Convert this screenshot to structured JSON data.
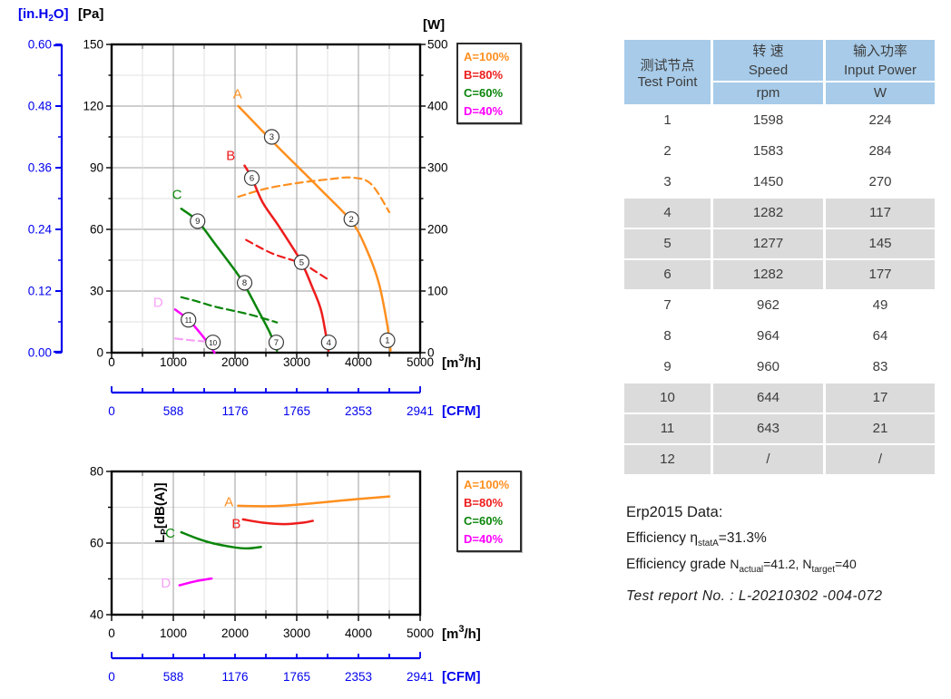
{
  "colors": {
    "blue_axis": "#0000ee",
    "grid_major": "#9c9c9c",
    "grid_minor": "#e0e0e0",
    "frame": "#000000",
    "curve_a": "#ff8f1f",
    "curve_b": "#ee1c1c",
    "curve_c": "#0a850a",
    "curve_d": "#ff00ff",
    "curve_d_light": "#f7a1f7",
    "table_header_bg": "#a7cbe9",
    "table_shade_bg": "#dbdbdb",
    "table_text": "#3d3d3d"
  },
  "legend": {
    "items": [
      {
        "label": "A=100%",
        "color": "#ff8f1f"
      },
      {
        "label": "B=80%",
        "color": "#ee1c1c"
      },
      {
        "label": "C=60%",
        "color": "#0a850a"
      },
      {
        "label": "D=40%",
        "color": "#ff00ff"
      }
    ]
  },
  "chart_data": [
    {
      "type": "line",
      "name": "pressure-and-power-vs-airflow",
      "x_axis": {
        "min": 0,
        "max": 5000,
        "major": 1000,
        "minor": 500,
        "ticks": [
          "0",
          "1000",
          "2000",
          "3000",
          "4000",
          "5000"
        ],
        "unit_parts": [
          {
            "t": "[m"
          },
          {
            "t": "3",
            "dy": -7,
            "s": 11
          },
          {
            "t": "/h]",
            "dy": 7
          }
        ]
      },
      "y_axis_pa": {
        "min": 0,
        "max": 150,
        "major": 30,
        "minor": 15,
        "ticks": [
          "0",
          "30",
          "60",
          "90",
          "120",
          "150"
        ],
        "unit": "[Pa]"
      },
      "y_axis_w": {
        "min": 0,
        "max": 500,
        "ticks": [
          "0",
          "100",
          "200",
          "300",
          "400",
          "500"
        ],
        "unit": "[W]"
      },
      "y_axis_inh2o": {
        "ticks": [
          "0.00",
          "0.12",
          "0.24",
          "0.36",
          "0.48",
          "0.60"
        ],
        "unit_parts": [
          {
            "t": "[in.H"
          },
          {
            "t": "2",
            "dy": 3,
            "s": 10
          },
          {
            "t": "O]",
            "dy": -3
          }
        ]
      },
      "x_axis_cfm": {
        "ticks": [
          "0",
          "588",
          "1176",
          "1765",
          "2353",
          "2941"
        ],
        "unit": "[CFM]"
      },
      "series": [
        {
          "name": "A-pressure",
          "color": "#ff8f1f",
          "dash": false,
          "axis": "pa",
          "points": [
            [
              2053,
              120
            ],
            [
              2600,
              103
            ],
            [
              3000,
              91
            ],
            [
              3400,
              79
            ],
            [
              3885,
              64
            ],
            [
              4120,
              51
            ],
            [
              4330,
              34
            ],
            [
              4470,
              13
            ],
            [
              4520,
              1
            ]
          ]
        },
        {
          "name": "A-power",
          "color": "#ff8f1f",
          "dash": true,
          "axis": "w",
          "points": [
            [
              2053,
              253
            ],
            [
              2500,
              266
            ],
            [
              3000,
              275
            ],
            [
              3500,
              281
            ],
            [
              3880,
              284
            ],
            [
              4200,
              274
            ],
            [
              4500,
              228
            ]
          ]
        },
        {
          "name": "B-pressure",
          "color": "#ee1c1c",
          "dash": false,
          "axis": "pa",
          "points": [
            [
              2155,
              91
            ],
            [
              2272,
              85
            ],
            [
              2450,
              73
            ],
            [
              2700,
              62
            ],
            [
              3000,
              48
            ],
            [
              3079,
              44
            ],
            [
              3250,
              32
            ],
            [
              3400,
              20
            ],
            [
              3515,
              1
            ]
          ]
        },
        {
          "name": "B-power",
          "color": "#ee1c1c",
          "dash": true,
          "axis": "w",
          "points": [
            [
              2180,
              183
            ],
            [
              2600,
              161
            ],
            [
              3080,
              145
            ],
            [
              3300,
              132
            ],
            [
              3520,
              118
            ]
          ]
        },
        {
          "name": "C-pressure",
          "color": "#0a850a",
          "dash": false,
          "axis": "pa",
          "points": [
            [
              1129,
              70
            ],
            [
              1393,
              64
            ],
            [
              1700,
              52
            ],
            [
              2000,
              40
            ],
            [
              2155,
              33
            ],
            [
              2350,
              22
            ],
            [
              2560,
              10
            ],
            [
              2680,
              1
            ]
          ]
        },
        {
          "name": "C-power",
          "color": "#0a850a",
          "dash": true,
          "axis": "w",
          "points": [
            [
              1129,
              90
            ],
            [
              1393,
              83
            ],
            [
              1700,
              74
            ],
            [
              2155,
              64
            ],
            [
              2450,
              56
            ],
            [
              2680,
              49
            ]
          ]
        },
        {
          "name": "D-pressure",
          "color": "#ff00ff",
          "dash": false,
          "axis": "pa",
          "points": [
            [
              1030,
              21
            ],
            [
              1246,
              16
            ],
            [
              1450,
              9
            ],
            [
              1600,
              3
            ],
            [
              1668,
              0
            ]
          ]
        },
        {
          "name": "D-power",
          "color": "#f7a1f7",
          "dash": true,
          "axis": "w",
          "points": [
            [
              1030,
              23
            ],
            [
              1300,
              20
            ],
            [
              1560,
              18
            ]
          ]
        }
      ],
      "curve_labels": [
        {
          "text": "A",
          "x": 2040,
          "y": 126,
          "color": "#ff8f1f"
        },
        {
          "text": "B",
          "x": 1930,
          "y": 96,
          "color": "#ee1c1c"
        },
        {
          "text": "C",
          "x": 1060,
          "y": 77,
          "color": "#0a850a"
        },
        {
          "text": "D",
          "x": 755,
          "y": 24.5,
          "color": "#f7a1f7"
        }
      ],
      "point_markers": [
        {
          "label": "1",
          "x": 4470,
          "y": 6
        },
        {
          "label": "2",
          "x": 3885,
          "y": 65
        },
        {
          "label": "3",
          "x": 2595,
          "y": 105
        },
        {
          "label": "4",
          "x": 3519,
          "y": 5
        },
        {
          "label": "5",
          "x": 3079,
          "y": 44
        },
        {
          "label": "6",
          "x": 2272,
          "y": 85
        },
        {
          "label": "7",
          "x": 2668,
          "y": 5
        },
        {
          "label": "8",
          "x": 2155,
          "y": 34
        },
        {
          "label": "9",
          "x": 1393,
          "y": 64
        },
        {
          "label": "10",
          "x": 1642,
          "y": 5
        },
        {
          "label": "11",
          "x": 1246,
          "y": 16
        }
      ]
    },
    {
      "type": "line",
      "name": "noise-vs-airflow",
      "x_axis": {
        "min": 0,
        "max": 5000,
        "major": 1000,
        "minor": 500,
        "ticks": [
          "0",
          "1000",
          "2000",
          "3000",
          "4000",
          "5000"
        ],
        "unit_parts": [
          {
            "t": "[m"
          },
          {
            "t": "3",
            "dy": -7,
            "s": 11
          },
          {
            "t": "/h]",
            "dy": 7
          }
        ]
      },
      "y_axis": {
        "min": 40,
        "max": 80,
        "ticks": [
          "40",
          "60",
          "80"
        ],
        "label_parts": [
          {
            "t": "L"
          },
          {
            "t": "P",
            "dy": 3,
            "s": 10
          },
          {
            "t": "[dB(A)]",
            "dy": -3
          }
        ]
      },
      "x_axis_cfm": {
        "ticks": [
          "0",
          "588",
          "1176",
          "1765",
          "2353",
          "2941"
        ],
        "unit": "[CFM]"
      },
      "series": [
        {
          "name": "A-noise",
          "color": "#ff8f1f",
          "points": [
            [
              2050,
              70.4
            ],
            [
              2600,
              70.3
            ],
            [
              3000,
              70.7
            ],
            [
              3500,
              71.5
            ],
            [
              4000,
              72.3
            ],
            [
              4500,
              73.0
            ]
          ]
        },
        {
          "name": "B-noise",
          "color": "#ee1c1c",
          "points": [
            [
              2130,
              66.6
            ],
            [
              2450,
              65.7
            ],
            [
              2800,
              65.3
            ],
            [
              3100,
              65.7
            ],
            [
              3260,
              66.2
            ]
          ]
        },
        {
          "name": "C-noise",
          "color": "#0a850a",
          "points": [
            [
              1130,
              63.0
            ],
            [
              1400,
              61.2
            ],
            [
              1650,
              59.9
            ],
            [
              1950,
              58.9
            ],
            [
              2200,
              58.5
            ],
            [
              2420,
              58.9
            ]
          ]
        },
        {
          "name": "D-noise",
          "color": "#ff00ff",
          "points": [
            [
              1100,
              48.2
            ],
            [
              1350,
              49.3
            ],
            [
              1620,
              50.1
            ]
          ]
        }
      ],
      "curve_labels": [
        {
          "text": "A",
          "x": 1900,
          "y": 71.5,
          "color": "#ff8f1f"
        },
        {
          "text": "B",
          "x": 2020,
          "y": 65.4,
          "color": "#ee1c1c"
        },
        {
          "text": "C",
          "x": 950,
          "y": 62.8,
          "color": "#0a850a"
        },
        {
          "text": "D",
          "x": 880,
          "y": 48.9,
          "color": "#f7a1f7"
        }
      ]
    }
  ],
  "table": {
    "header": {
      "test_point_zh": "测试节点",
      "test_point_en": "Test Point",
      "speed_zh": "转 速",
      "speed_en": "Speed",
      "speed_unit": "rpm",
      "power_zh": "输入功率",
      "power_en": "Input Power",
      "power_unit": "W"
    },
    "rows": [
      {
        "point": "1",
        "speed": "1598",
        "power": "224"
      },
      {
        "point": "2",
        "speed": "1583",
        "power": "284"
      },
      {
        "point": "3",
        "speed": "1450",
        "power": "270"
      },
      {
        "point": "4",
        "speed": "1282",
        "power": "117"
      },
      {
        "point": "5",
        "speed": "1277",
        "power": "145"
      },
      {
        "point": "6",
        "speed": "1282",
        "power": "177"
      },
      {
        "point": "7",
        "speed": "962",
        "power": "49"
      },
      {
        "point": "8",
        "speed": "964",
        "power": "64"
      },
      {
        "point": "9",
        "speed": "960",
        "power": "83"
      },
      {
        "point": "10",
        "speed": "644",
        "power": "17"
      },
      {
        "point": "11",
        "speed": "643",
        "power": "21"
      },
      {
        "point": "12",
        "speed": "/",
        "power": "/"
      }
    ]
  },
  "erp": {
    "title": "Erp2015  Data:",
    "efficiency_prefix": "Efficiency η",
    "efficiency_sub": "statA",
    "efficiency_value": "=31.3%",
    "grade_label": "Efficiency grade ",
    "grade_n1": "N",
    "grade_sub1": "actual",
    "grade_mid": "=41.2, N",
    "grade_sub2": "target",
    "grade_suffix": "=40",
    "report": "Test report No.  : L-20210302 -004-072"
  }
}
